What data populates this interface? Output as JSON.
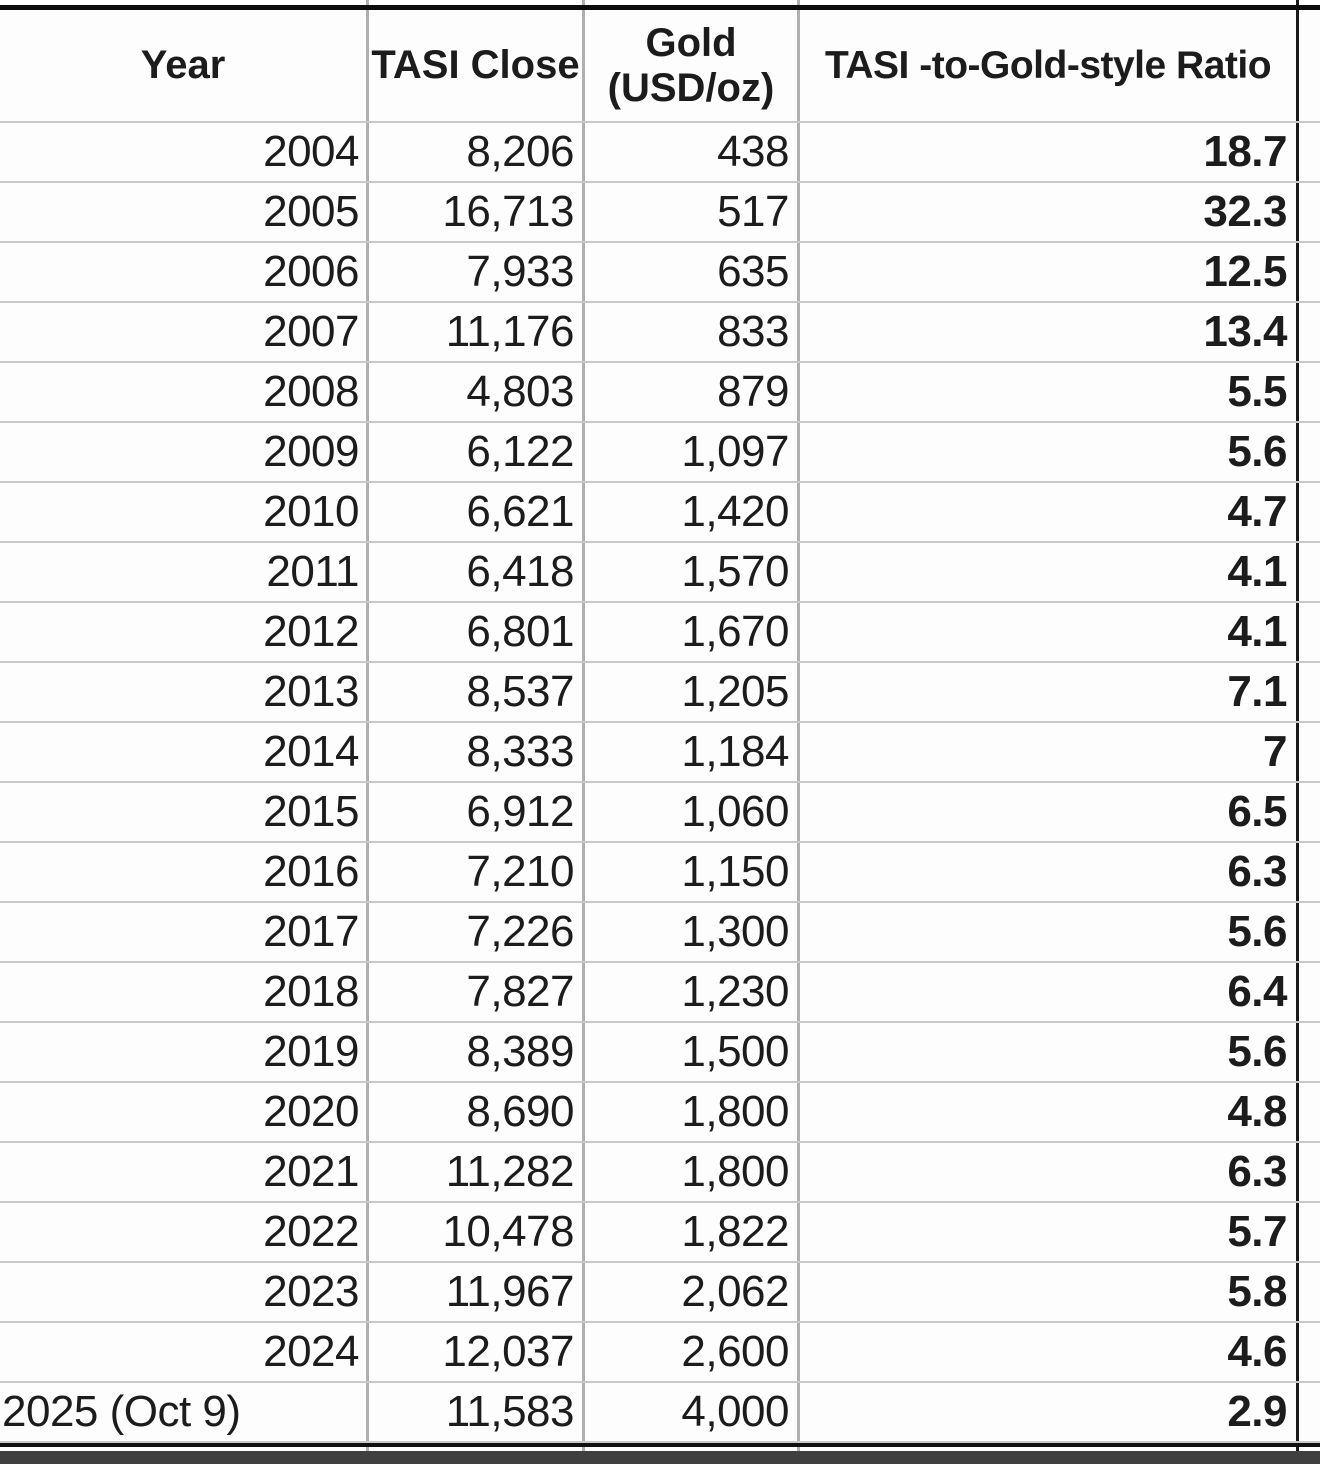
{
  "table": {
    "headers": {
      "year": "Year",
      "tasi_close": "TASI Close",
      "gold_line1": "Gold",
      "gold_line2": "(USD/oz)",
      "ratio": "TASI -to-Gold-style Ratio"
    },
    "rows": [
      {
        "year": "2004",
        "tasi_close": "8,206",
        "gold": "438",
        "ratio": "18.7"
      },
      {
        "year": "2005",
        "tasi_close": "16,713",
        "gold": "517",
        "ratio": "32.3"
      },
      {
        "year": "2006",
        "tasi_close": "7,933",
        "gold": "635",
        "ratio": "12.5"
      },
      {
        "year": "2007",
        "tasi_close": "11,176",
        "gold": "833",
        "ratio": "13.4"
      },
      {
        "year": "2008",
        "tasi_close": "4,803",
        "gold": "879",
        "ratio": "5.5"
      },
      {
        "year": "2009",
        "tasi_close": "6,122",
        "gold": "1,097",
        "ratio": "5.6"
      },
      {
        "year": "2010",
        "tasi_close": "6,621",
        "gold": "1,420",
        "ratio": "4.7"
      },
      {
        "year": "2011",
        "tasi_close": "6,418",
        "gold": "1,570",
        "ratio": "4.1"
      },
      {
        "year": "2012",
        "tasi_close": "6,801",
        "gold": "1,670",
        "ratio": "4.1"
      },
      {
        "year": "2013",
        "tasi_close": "8,537",
        "gold": "1,205",
        "ratio": "7.1"
      },
      {
        "year": "2014",
        "tasi_close": "8,333",
        "gold": "1,184",
        "ratio": "7"
      },
      {
        "year": "2015",
        "tasi_close": "6,912",
        "gold": "1,060",
        "ratio": "6.5"
      },
      {
        "year": "2016",
        "tasi_close": "7,210",
        "gold": "1,150",
        "ratio": "6.3"
      },
      {
        "year": "2017",
        "tasi_close": "7,226",
        "gold": "1,300",
        "ratio": "5.6"
      },
      {
        "year": "2018",
        "tasi_close": "7,827",
        "gold": "1,230",
        "ratio": "6.4"
      },
      {
        "year": "2019",
        "tasi_close": "8,389",
        "gold": "1,500",
        "ratio": "5.6"
      },
      {
        "year": "2020",
        "tasi_close": "8,690",
        "gold": "1,800",
        "ratio": "4.8"
      },
      {
        "year": "2021",
        "tasi_close": "11,282",
        "gold": "1,800",
        "ratio": "6.3"
      },
      {
        "year": "2022",
        "tasi_close": "10,478",
        "gold": "1,822",
        "ratio": "5.7"
      },
      {
        "year": "2023",
        "tasi_close": "11,967",
        "gold": "2,062",
        "ratio": "5.8"
      },
      {
        "year": "2024",
        "tasi_close": "12,037",
        "gold": "2,600",
        "ratio": "4.6"
      },
      {
        "year": "2025 (Oct 9)",
        "tasi_close": "11,583",
        "gold": "4,000",
        "ratio": "2.9"
      }
    ]
  },
  "colors": {
    "grid_line": "#c9c9c9",
    "column_line": "#b0b0b0",
    "black_border": "#0d0d0d",
    "bottom_bar": "#3f3f3f",
    "text": "#1c1c1c",
    "cell_background": "#fdfdfd"
  }
}
